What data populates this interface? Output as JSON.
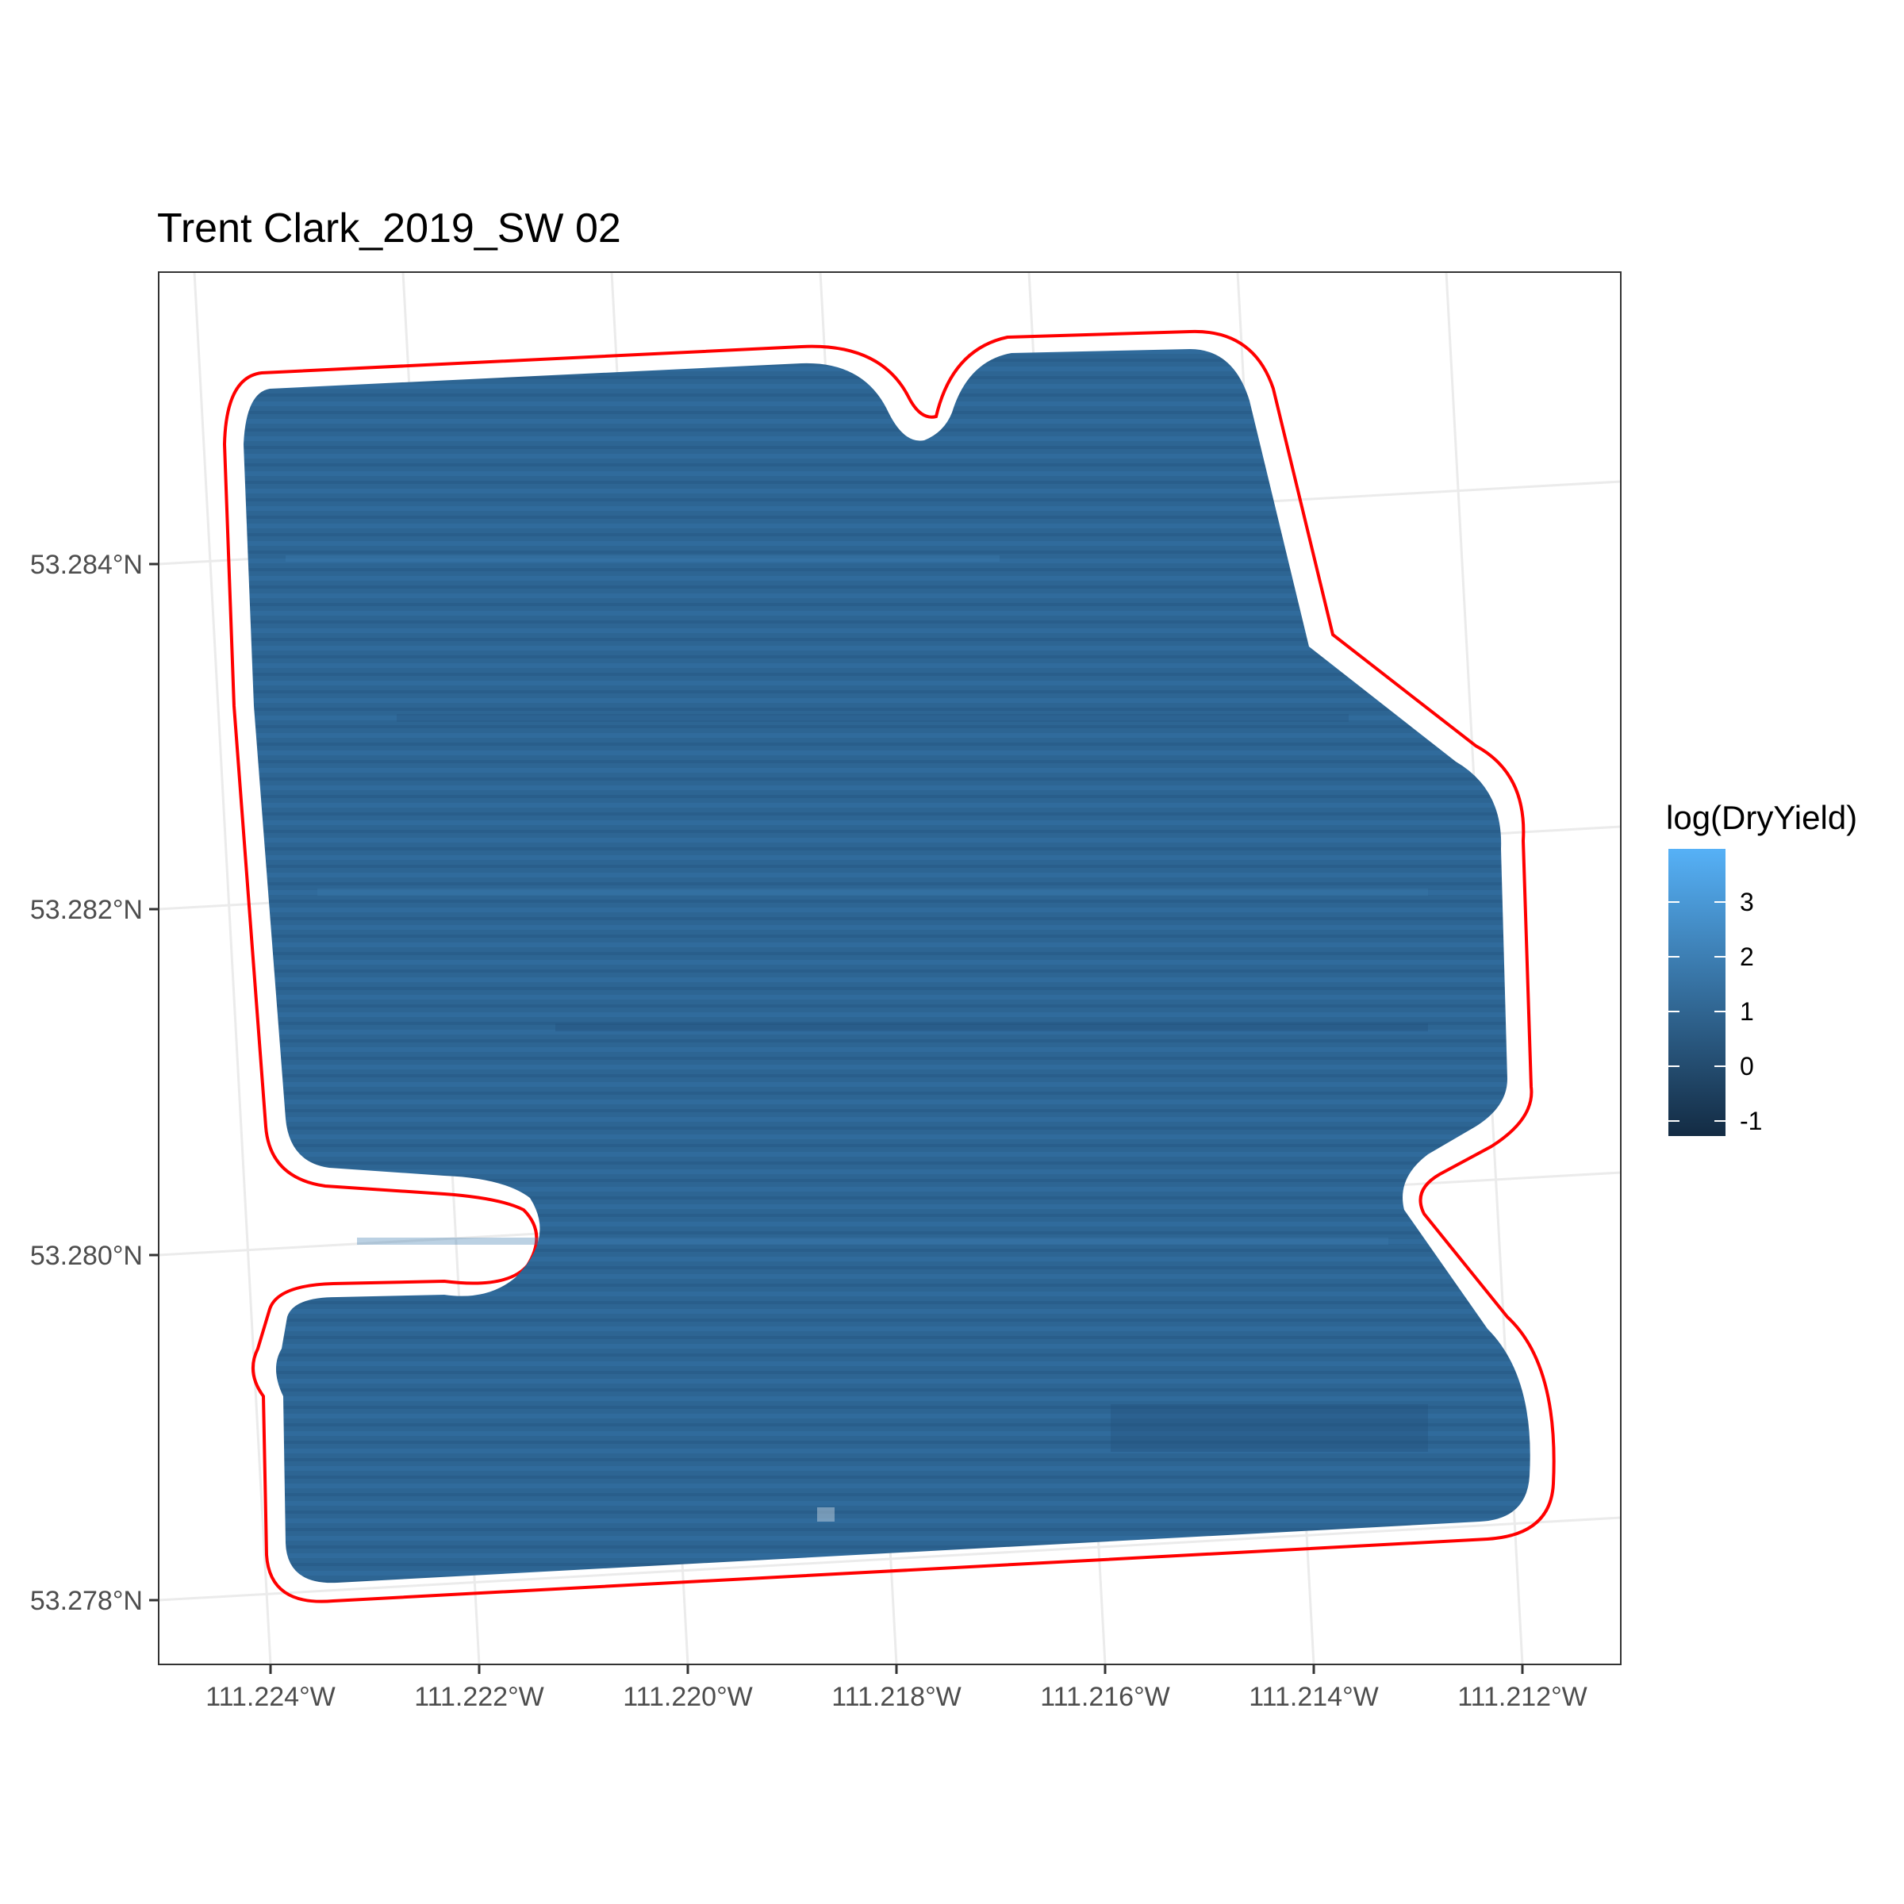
{
  "chart_data": {
    "type": "heatmap",
    "title": "Trent Clark_2019_SW 02",
    "xlabel": "",
    "ylabel": "",
    "x_ticks": [
      "111.224°W",
      "111.222°W",
      "111.220°W",
      "111.218°W",
      "111.216°W",
      "111.214°W",
      "111.212°W"
    ],
    "y_ticks": [
      "53.284°N",
      "53.282°N",
      "53.280°N",
      "53.278°N"
    ],
    "legend": {
      "title": "log(DryYield)",
      "labels": [
        "3",
        "2",
        "1",
        "0",
        "-1"
      ],
      "low_color": "#132b43",
      "high_color": "#56b1f7",
      "placement": "right"
    },
    "field_fill_color": "#2d6593",
    "boundary_color": "#ff0000",
    "grid": true,
    "theme": "bw"
  }
}
